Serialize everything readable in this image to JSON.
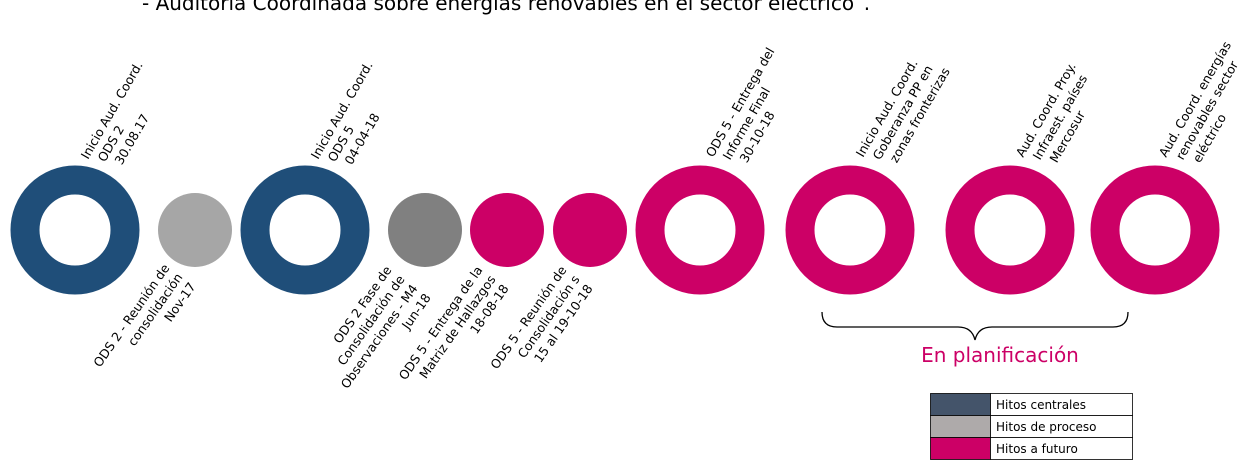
{
  "header": {
    "title": "-      Auditoría Coordinada sobre energías renovables en el sector eléctrico”."
  },
  "nodes": [
    {
      "lines": [
        "Inicio Aud. Coord.",
        "ODS 2",
        "30.08.17"
      ]
    },
    {
      "lines": [
        "ODS 2 - Reunión de",
        "consolidación",
        "Nov-17"
      ]
    },
    {
      "lines": [
        "Inicio Aud. Coord.",
        "ODS 5",
        "04-04-18"
      ]
    },
    {
      "lines": [
        "ODS 2 Fase de",
        "Consolidación de",
        "Observaciones - M4",
        "Jun-18"
      ]
    },
    {
      "lines": [
        "ODS 5 - Entrega de la",
        "Matriz de Hallazgos",
        "18-08-18"
      ]
    },
    {
      "lines": [
        "ODS 5 - Reunión de",
        "Consolidación s",
        "15 al 19-10-18"
      ]
    },
    {
      "lines": [
        "ODS 5 - Entrega del",
        "Informe Final",
        "30-10-18"
      ]
    },
    {
      "lines": [
        "Inicio Aud. Coord.",
        "Goberanza PP en",
        "zonas fronterizas"
      ]
    },
    {
      "lines": [
        "Aud. Coord. Proy.",
        "Infraest. países",
        "Mercosur"
      ]
    },
    {
      "lines": [
        "Aud. Coord. energías",
        "renovables sector",
        "eléctrico"
      ]
    }
  ],
  "bracket_label": "En planificación",
  "legend": [
    {
      "label": "Hitos centrales"
    },
    {
      "label": "Hitos de proceso"
    },
    {
      "label": "Hitos a futuro"
    }
  ]
}
